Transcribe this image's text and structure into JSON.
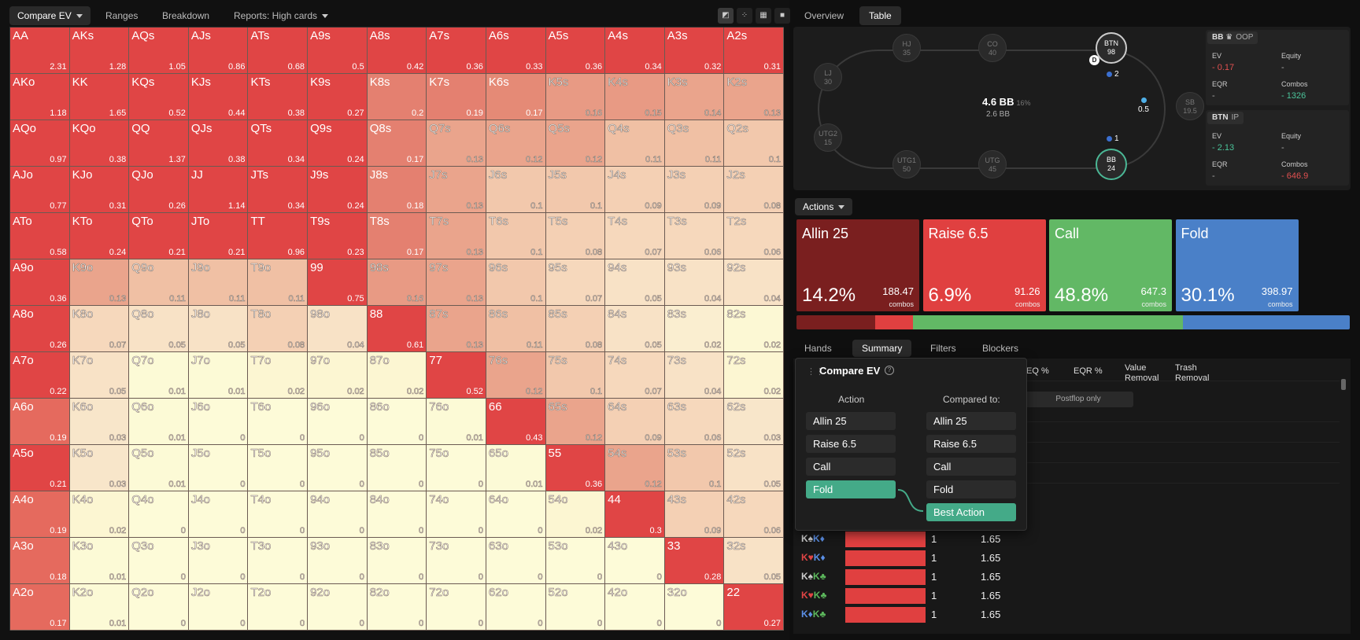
{
  "toolbar": {
    "compare_ev": "Compare EV",
    "ranges": "Ranges",
    "breakdown": "Breakdown",
    "reports": "Reports: High cards"
  },
  "grid": [
    [
      [
        "AA",
        "2.31",
        "#e04545"
      ],
      [
        "AKs",
        "1.28",
        "#e04545"
      ],
      [
        "AQs",
        "1.05",
        "#e04545"
      ],
      [
        "AJs",
        "0.86",
        "#e04545"
      ],
      [
        "ATs",
        "0.68",
        "#e04545"
      ],
      [
        "A9s",
        "0.5",
        "#e04545"
      ],
      [
        "A8s",
        "0.42",
        "#e04545"
      ],
      [
        "A7s",
        "0.36",
        "#e04545"
      ],
      [
        "A6s",
        "0.33",
        "#e04545"
      ],
      [
        "A5s",
        "0.36",
        "#e04545"
      ],
      [
        "A4s",
        "0.34",
        "#e04545"
      ],
      [
        "A3s",
        "0.32",
        "#e04545"
      ],
      [
        "A2s",
        "0.31",
        "#e04545"
      ]
    ],
    [
      [
        "AKo",
        "1.18",
        "#e04545"
      ],
      [
        "KK",
        "1.65",
        "#e04545"
      ],
      [
        "KQs",
        "0.52",
        "#e04545"
      ],
      [
        "KJs",
        "0.44",
        "#e04545"
      ],
      [
        "KTs",
        "0.38",
        "#e04545"
      ],
      [
        "K9s",
        "0.27",
        "#e04545"
      ],
      [
        "K8s",
        "0.2",
        "#e48070"
      ],
      [
        "K7s",
        "0.19",
        "#e48070"
      ],
      [
        "K6s",
        "0.17",
        "#e58a76"
      ],
      [
        "K5s",
        "0.16",
        "#e89a84"
      ],
      [
        "K4s",
        "0.15",
        "#e89a84"
      ],
      [
        "K3s",
        "0.14",
        "#eaa48c"
      ],
      [
        "K2s",
        "0.13",
        "#eaa48c"
      ]
    ],
    [
      [
        "AQo",
        "0.97",
        "#e04545"
      ],
      [
        "KQo",
        "0.38",
        "#e04545"
      ],
      [
        "QQ",
        "1.37",
        "#e04545"
      ],
      [
        "QJs",
        "0.38",
        "#e04545"
      ],
      [
        "QTs",
        "0.34",
        "#e04545"
      ],
      [
        "Q9s",
        "0.24",
        "#e04545"
      ],
      [
        "Q8s",
        "0.17",
        "#e48070"
      ],
      [
        "Q7s",
        "0.13",
        "#eaa48c"
      ],
      [
        "Q6s",
        "0.12",
        "#eaa48c"
      ],
      [
        "Q5s",
        "0.12",
        "#eaa48c"
      ],
      [
        "Q4s",
        "0.11",
        "#f0c0a4"
      ],
      [
        "Q3s",
        "0.11",
        "#f0c0a4"
      ],
      [
        "Q2s",
        "0.1",
        "#f2c8ac"
      ]
    ],
    [
      [
        "AJo",
        "0.77",
        "#e04545"
      ],
      [
        "KJo",
        "0.31",
        "#e04545"
      ],
      [
        "QJo",
        "0.26",
        "#e04545"
      ],
      [
        "JJ",
        "1.14",
        "#e04545"
      ],
      [
        "JTs",
        "0.34",
        "#e04545"
      ],
      [
        "J9s",
        "0.24",
        "#e04545"
      ],
      [
        "J8s",
        "0.18",
        "#e48070"
      ],
      [
        "J7s",
        "0.13",
        "#eaa48c"
      ],
      [
        "J6s",
        "0.1",
        "#f2c8ac"
      ],
      [
        "J5s",
        "0.1",
        "#f2c8ac"
      ],
      [
        "J4s",
        "0.09",
        "#f4d0b4"
      ],
      [
        "J3s",
        "0.09",
        "#f4d0b4"
      ],
      [
        "J2s",
        "0.08",
        "#f4d0b4"
      ]
    ],
    [
      [
        "ATo",
        "0.58",
        "#e04545"
      ],
      [
        "KTo",
        "0.24",
        "#e04545"
      ],
      [
        "QTo",
        "0.21",
        "#e04545"
      ],
      [
        "JTo",
        "0.21",
        "#e04545"
      ],
      [
        "TT",
        "0.96",
        "#e04545"
      ],
      [
        "T9s",
        "0.23",
        "#e04545"
      ],
      [
        "T8s",
        "0.17",
        "#e48070"
      ],
      [
        "T7s",
        "0.13",
        "#eaa48c"
      ],
      [
        "T6s",
        "0.1",
        "#f2c8ac"
      ],
      [
        "T5s",
        "0.08",
        "#f4d0b4"
      ],
      [
        "T4s",
        "0.07",
        "#f6d8bc"
      ],
      [
        "T3s",
        "0.06",
        "#f6d8bc"
      ],
      [
        "T2s",
        "0.06",
        "#f6d8bc"
      ]
    ],
    [
      [
        "A9o",
        "0.36",
        "#e04545"
      ],
      [
        "K9o",
        "0.13",
        "#eaa48c"
      ],
      [
        "Q9o",
        "0.11",
        "#f0c0a4"
      ],
      [
        "J9o",
        "0.11",
        "#f0c0a4"
      ],
      [
        "T9o",
        "0.11",
        "#f0c0a4"
      ],
      [
        "99",
        "0.75",
        "#e04545"
      ],
      [
        "98s",
        "0.16",
        "#e89a84"
      ],
      [
        "97s",
        "0.13",
        "#eaa48c"
      ],
      [
        "96s",
        "0.1",
        "#f2c8ac"
      ],
      [
        "95s",
        "0.07",
        "#f6d8bc"
      ],
      [
        "94s",
        "0.05",
        "#f8e2c6"
      ],
      [
        "93s",
        "0.04",
        "#f8e2c6"
      ],
      [
        "92s",
        "0.04",
        "#f8e2c6"
      ]
    ],
    [
      [
        "A8o",
        "0.26",
        "#e04545"
      ],
      [
        "K8o",
        "0.07",
        "#f6d8bc"
      ],
      [
        "Q8o",
        "0.05",
        "#f8e2c6"
      ],
      [
        "J8o",
        "0.05",
        "#f8e2c6"
      ],
      [
        "T8o",
        "0.08",
        "#f4d0b4"
      ],
      [
        "98o",
        "0.04",
        "#f8e2c6"
      ],
      [
        "88",
        "0.61",
        "#e04545"
      ],
      [
        "87s",
        "0.13",
        "#eaa48c"
      ],
      [
        "86s",
        "0.11",
        "#f0c0a4"
      ],
      [
        "85s",
        "0.08",
        "#f4d0b4"
      ],
      [
        "84s",
        "0.05",
        "#f8e2c6"
      ],
      [
        "83s",
        "0.02",
        "#faeed0"
      ],
      [
        "82s",
        "0.02",
        "#fcf8d4"
      ]
    ],
    [
      [
        "A7o",
        "0.22",
        "#e04545"
      ],
      [
        "K7o",
        "0.05",
        "#f8e2c6"
      ],
      [
        "Q7o",
        "0.01",
        "#fcfad6"
      ],
      [
        "J7o",
        "0.01",
        "#fcfad6"
      ],
      [
        "T7o",
        "0.02",
        "#fcf6d2"
      ],
      [
        "97o",
        "0.02",
        "#fcf6d2"
      ],
      [
        "87o",
        "0.02",
        "#fcf6d2"
      ],
      [
        "77",
        "0.52",
        "#e04545"
      ],
      [
        "76s",
        "0.12",
        "#eaa48c"
      ],
      [
        "75s",
        "0.1",
        "#f2c8ac"
      ],
      [
        "74s",
        "0.07",
        "#f6d8bc"
      ],
      [
        "73s",
        "0.04",
        "#f8e2c6"
      ],
      [
        "72s",
        "0.02",
        "#fcf6d2"
      ]
    ],
    [
      [
        "A6o",
        "0.19",
        "#e56a5e"
      ],
      [
        "K6o",
        "0.03",
        "#f8e6ca"
      ],
      [
        "Q6o",
        "0.01",
        "#fcfad6"
      ],
      [
        "J6o",
        "0",
        "#fdfbd8"
      ],
      [
        "T6o",
        "0",
        "#fdfbd8"
      ],
      [
        "96o",
        "0",
        "#fdfbd8"
      ],
      [
        "86o",
        "0",
        "#fdfbd8"
      ],
      [
        "76o",
        "0.01",
        "#fcfad6"
      ],
      [
        "66",
        "0.43",
        "#e04545"
      ],
      [
        "65s",
        "0.12",
        "#eaa48c"
      ],
      [
        "64s",
        "0.09",
        "#f4d0b4"
      ],
      [
        "63s",
        "0.06",
        "#f6d8bc"
      ],
      [
        "62s",
        "0.03",
        "#f8e6ca"
      ]
    ],
    [
      [
        "A5o",
        "0.21",
        "#e04545"
      ],
      [
        "K5o",
        "0.03",
        "#f8e6ca"
      ],
      [
        "Q5o",
        "0.01",
        "#fcfad6"
      ],
      [
        "J5o",
        "0",
        "#fdfbd8"
      ],
      [
        "T5o",
        "0",
        "#fdfbd8"
      ],
      [
        "95o",
        "0",
        "#fdfbd8"
      ],
      [
        "85o",
        "0",
        "#fdfbd8"
      ],
      [
        "75o",
        "0",
        "#fdfbd8"
      ],
      [
        "65o",
        "0.01",
        "#fcfad6"
      ],
      [
        "55",
        "0.36",
        "#e04545"
      ],
      [
        "54s",
        "0.12",
        "#eaa48c"
      ],
      [
        "53s",
        "0.1",
        "#f2c8ac"
      ],
      [
        "52s",
        "0.05",
        "#f8e2c6"
      ]
    ],
    [
      [
        "A4o",
        "0.19",
        "#e56a5e"
      ],
      [
        "K4o",
        "0.02",
        "#fcf6d2"
      ],
      [
        "Q4o",
        "0",
        "#fdfbd8"
      ],
      [
        "J4o",
        "0",
        "#fdfbd8"
      ],
      [
        "T4o",
        "0",
        "#fdfbd8"
      ],
      [
        "94o",
        "0",
        "#fdfbd8"
      ],
      [
        "84o",
        "0",
        "#fdfbd8"
      ],
      [
        "74o",
        "0",
        "#fdfbd8"
      ],
      [
        "64o",
        "0",
        "#fdfbd8"
      ],
      [
        "54o",
        "0.02",
        "#fcf6d2"
      ],
      [
        "44",
        "0.3",
        "#e04545"
      ],
      [
        "43s",
        "0.09",
        "#f4d0b4"
      ],
      [
        "42s",
        "0.06",
        "#f6d8bc"
      ]
    ],
    [
      [
        "A3o",
        "0.18",
        "#e56a5e"
      ],
      [
        "K3o",
        "0.01",
        "#fcfad6"
      ],
      [
        "Q3o",
        "0",
        "#fdfbd8"
      ],
      [
        "J3o",
        "0",
        "#fdfbd8"
      ],
      [
        "T3o",
        "0",
        "#fdfbd8"
      ],
      [
        "93o",
        "0",
        "#fdfbd8"
      ],
      [
        "83o",
        "0",
        "#fdfbd8"
      ],
      [
        "73o",
        "0",
        "#fdfbd8"
      ],
      [
        "63o",
        "0",
        "#fdfbd8"
      ],
      [
        "53o",
        "0",
        "#fdfbd8"
      ],
      [
        "43o",
        "0",
        "#fdfbd8"
      ],
      [
        "33",
        "0.28",
        "#e04545"
      ],
      [
        "32s",
        "0.05",
        "#f8e2c6"
      ]
    ],
    [
      [
        "A2o",
        "0.17",
        "#e56a5e"
      ],
      [
        "K2o",
        "0.01",
        "#fcfad6"
      ],
      [
        "Q2o",
        "0",
        "#fdfbd8"
      ],
      [
        "J2o",
        "0",
        "#fdfbd8"
      ],
      [
        "T2o",
        "0",
        "#fdfbd8"
      ],
      [
        "92o",
        "0",
        "#fdfbd8"
      ],
      [
        "82o",
        "0",
        "#fdfbd8"
      ],
      [
        "72o",
        "0",
        "#fdfbd8"
      ],
      [
        "62o",
        "0",
        "#fdfbd8"
      ],
      [
        "52o",
        "0",
        "#fdfbd8"
      ],
      [
        "42o",
        "0",
        "#fdfbd8"
      ],
      [
        "32o",
        "0",
        "#fdfbd8"
      ],
      [
        "22",
        "0.27",
        "#e04545"
      ]
    ]
  ],
  "right_tabs": {
    "overview": "Overview",
    "table": "Table"
  },
  "seats": [
    {
      "pos": "HJ",
      "stack": "35"
    },
    {
      "pos": "CO",
      "stack": "40"
    },
    {
      "pos": "BTN",
      "stack": "98"
    },
    {
      "pos": "LJ",
      "stack": "30"
    },
    {
      "pos": "SB",
      "stack": "19.5"
    },
    {
      "pos": "UTG2",
      "stack": "15"
    },
    {
      "pos": "UTG1",
      "stack": "50"
    },
    {
      "pos": "UTG",
      "stack": "45"
    },
    {
      "pos": "BB",
      "stack": "24"
    }
  ],
  "table_info": {
    "pot": "4.6 BB",
    "pot_pct": "16%",
    "pot_sub": "2.6 BB",
    "dealer": "D",
    "chip_btn": "2",
    "chip_sb": "0.5",
    "chip_bb": "1"
  },
  "stats_bb": {
    "head": "BB",
    "crown": "♛",
    "tag": "OOP",
    "ev_label": "EV",
    "ev_value": "- 0.17",
    "equity_label": "Equity",
    "equity_value": "-",
    "eqr_label": "EQR",
    "eqr_value": "-",
    "combos_label": "Combos",
    "combos_value": "- 1326"
  },
  "stats_btn": {
    "head": "BTN",
    "tag": "IP",
    "ev_label": "EV",
    "ev_value": "- 2.13",
    "equity_label": "Equity",
    "equity_value": "-",
    "eqr_label": "EQR",
    "eqr_value": "-",
    "combos_label": "Combos",
    "combos_value": "- 646.9"
  },
  "actions_label": "Actions",
  "actions": [
    {
      "label": "Allin 25",
      "pct": "14.2%",
      "combos": "188.47",
      "combos_label": "combos",
      "color": "#7a1f1f",
      "share": 14.2
    },
    {
      "label": "Raise 6.5",
      "pct": "6.9%",
      "combos": "91.26",
      "combos_label": "combos",
      "color": "#e04040",
      "share": 6.9
    },
    {
      "label": "Call",
      "pct": "48.8%",
      "combos": "647.3",
      "combos_label": "combos",
      "color": "#62b865",
      "share": 48.8
    },
    {
      "label": "Fold",
      "pct": "30.1%",
      "combos": "398.97",
      "combos_label": "combos",
      "color": "#4a80c8",
      "share": 30.1
    }
  ],
  "bottom_tabs": {
    "hands": "Hands",
    "summary": "Summary",
    "filters": "Filters",
    "blockers": "Blockers"
  },
  "columns": {
    "eq": "EQ %",
    "eqr": "EQR %",
    "value_removal_1": "Value",
    "value_removal_2": "Removal",
    "trash_removal_1": "Trash",
    "trash_removal_2": "Removal"
  },
  "postflop_only": "Postflop only",
  "hand_rows": [
    {
      "c1": "K♠",
      "c1col": "#ccc",
      "c2": "K♦",
      "c2col": "#5b8fe6",
      "v1": "1",
      "v2": "1.65"
    },
    {
      "c1": "K♥",
      "c1col": "#e04545",
      "c2": "K♦",
      "c2col": "#5b8fe6",
      "v1": "1",
      "v2": "1.65"
    },
    {
      "c1": "K♠",
      "c1col": "#ccc",
      "c2": "K♣",
      "c2col": "#5cb85c",
      "v1": "1",
      "v2": "1.65"
    },
    {
      "c1": "K♥",
      "c1col": "#e04545",
      "c2": "K♣",
      "c2col": "#5cb85c",
      "v1": "1",
      "v2": "1.65"
    },
    {
      "c1": "K♦",
      "c1col": "#5b8fe6",
      "c2": "K♣",
      "c2col": "#5cb85c",
      "v1": "1",
      "v2": "1.65"
    }
  ],
  "popup": {
    "title": "Compare EV",
    "help": "?",
    "action_head": "Action",
    "compared_head": "Compared to:",
    "actions": [
      "Allin 25",
      "Raise 6.5",
      "Call",
      "Fold"
    ],
    "compared": [
      "Allin 25",
      "Raise 6.5",
      "Call",
      "Fold",
      "Best Action"
    ]
  }
}
